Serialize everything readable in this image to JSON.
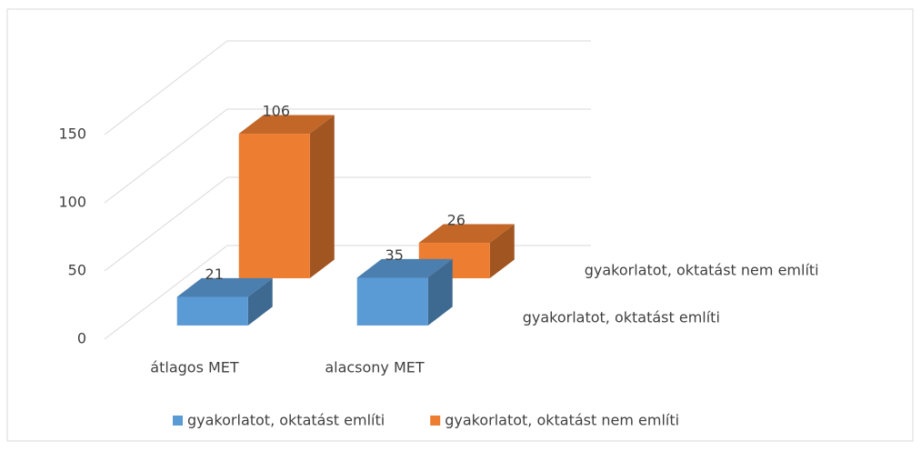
{
  "chart_data": {
    "type": "bar3d",
    "categories": [
      "átlagos MET",
      "alacsony MET"
    ],
    "series": [
      {
        "name": "gyakorlatot, oktatást említi",
        "color": "#5b9bd5",
        "values": [
          21,
          35
        ]
      },
      {
        "name": "gyakorlatot, oktatást nem említi",
        "color": "#ed7d31",
        "values": [
          106,
          26
        ]
      }
    ],
    "ylim": [
      0,
      150
    ],
    "yticks": [
      0,
      50,
      100,
      150
    ],
    "grid": true,
    "legend": "bottom"
  }
}
